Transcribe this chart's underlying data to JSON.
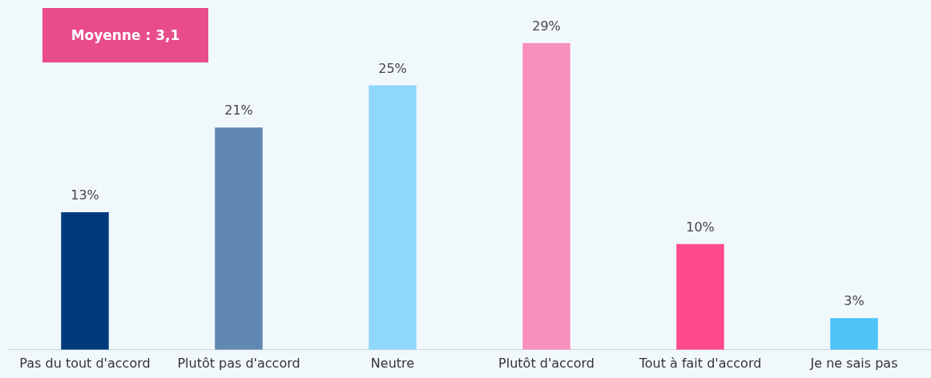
{
  "chart_data": {
    "type": "bar",
    "categories": [
      "Pas du tout d'accord",
      "Plutôt pas d'accord",
      "Neutre",
      "Plutôt d'accord",
      "Tout à fait d'accord",
      "Je ne sais pas"
    ],
    "values": [
      13,
      21,
      25,
      29,
      10,
      3
    ],
    "colors": [
      "#003a7d",
      "#6088b3",
      "#90d8fb",
      "#f78fbf",
      "#fe4a8d",
      "#4fc3f8"
    ],
    "value_labels": [
      "13%",
      "21%",
      "25%",
      "29%",
      "10%",
      "3%"
    ],
    "annotations": [
      "Moyenne : 3,1"
    ],
    "grid": false,
    "legend": false
  }
}
